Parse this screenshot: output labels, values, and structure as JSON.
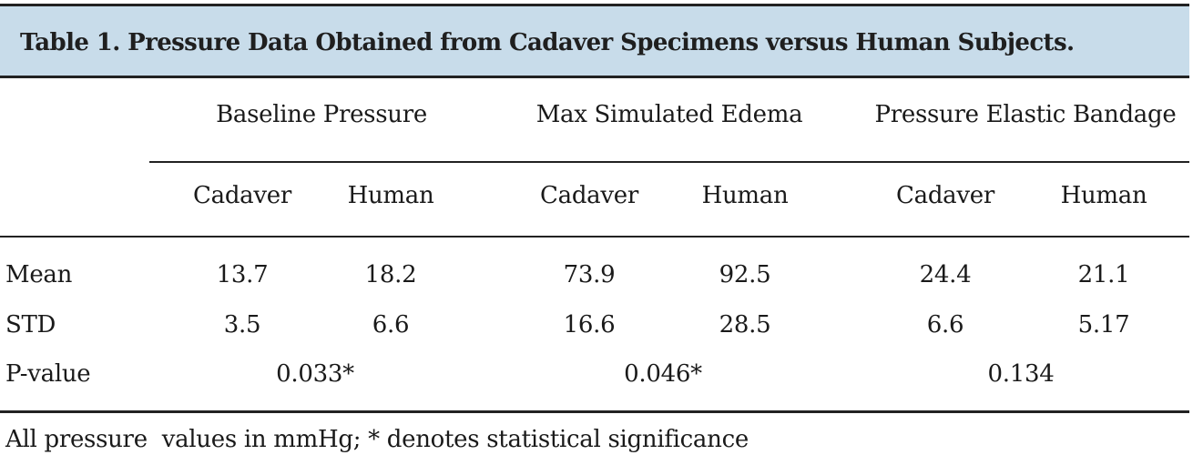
{
  "table": {
    "title": "Table 1. Pressure Data Obtained from Cadaver Specimens versus Human Subjects.",
    "groups": [
      "Baseline Pressure",
      "Max Simulated Edema",
      "Pressure Elastic Bandage"
    ],
    "subheaders": [
      "Cadaver",
      "Human",
      "Cadaver",
      "Human",
      "Cadaver",
      "Human"
    ],
    "rows": [
      {
        "label": "Mean",
        "values": [
          "13.7",
          "18.2",
          "73.9",
          "92.5",
          "24.4",
          "21.1"
        ]
      },
      {
        "label": "STD",
        "values": [
          "3.5",
          "6.6",
          "16.6",
          "28.5",
          "6.6",
          "5.17"
        ]
      }
    ],
    "pvalue": {
      "label": "P-value",
      "values": [
        "0.033*",
        "0.046*",
        "0.134"
      ]
    },
    "footnote": "All pressure  values in mmHg; * denotes statistical significance"
  }
}
